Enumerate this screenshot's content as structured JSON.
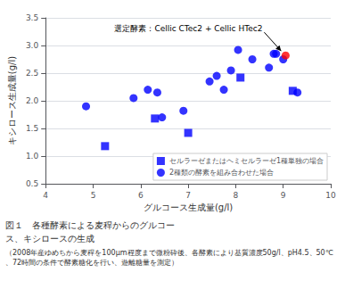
{
  "chart_data": {
    "type": "scatter",
    "xlabel": "グルコース生成量(g/l)",
    "ylabel": "キシロース生成量(g/l)",
    "xlim": [
      4.0,
      10.0
    ],
    "ylim": [
      0.5,
      3.5
    ],
    "xticks": [
      4,
      5,
      6,
      7,
      8,
      9,
      10
    ],
    "yticks": [
      0.5,
      {
        "value": 1.0,
        "label": "1.0"
      },
      1.5,
      {
        "value": 2.0,
        "label": "2.0"
      },
      2.5,
      {
        "value": 3.0,
        "label": "3.0"
      },
      3.5
    ],
    "grid": "y",
    "legend": "lower right",
    "series": [
      {
        "name": "セルラーゼまたはヘミセルラーゼ1種単独の場合",
        "color": "#0000FF",
        "marker": "square",
        "values": [
          [
            5.25,
            1.18
          ],
          [
            6.3,
            1.68
          ],
          [
            7.0,
            1.42
          ],
          [
            8.1,
            2.42
          ],
          [
            9.2,
            2.18
          ]
        ]
      },
      {
        "name": "2種類の酵素を組み合わせた場合",
        "color": "#0000FF",
        "marker": "circle",
        "values": [
          [
            4.85,
            1.9
          ],
          [
            5.85,
            2.05
          ],
          [
            6.15,
            2.2
          ],
          [
            6.35,
            2.15
          ],
          [
            6.45,
            1.7
          ],
          [
            6.9,
            1.82
          ],
          [
            7.45,
            2.35
          ],
          [
            7.6,
            2.45
          ],
          [
            7.75,
            2.2
          ],
          [
            7.9,
            2.55
          ],
          [
            8.05,
            2.92
          ],
          [
            8.35,
            2.75
          ],
          [
            8.7,
            2.6
          ],
          [
            8.8,
            2.85
          ],
          [
            8.85,
            2.85
          ],
          [
            9.3,
            2.15
          ],
          [
            9.0,
            2.75
          ]
        ]
      },
      {
        "color": "#FF0000",
        "marker": "circle",
        "values": [
          [
            9.05,
            2.82
          ]
        ]
      }
    ],
    "annotations": [
      {
        "text": "選定酵素：Cellic CTec2 + Cellic HTec2",
        "x": 9.05,
        "y": 2.82
      }
    ],
    "captions": [
      "図１　各種酵素による麦稈からのグルコー",
      "ス、キシロースの生成",
      "（2008年産ゆめちから麦稈を100μm程度まで微粉砕後、各酵素により基質濃度50g/l、pH4.5、50℃、72時間の条件で酵素糖化を行い、遊離糖量を測定）"
    ]
  }
}
